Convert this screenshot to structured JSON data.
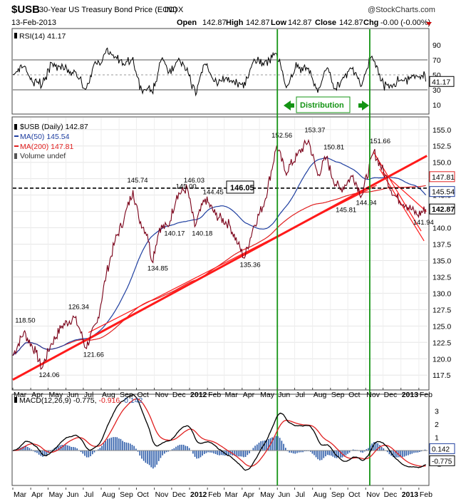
{
  "header": {
    "symbol": "$USB",
    "name": "30-Year US Treasury Bond Price (EOD)",
    "exchange": "INDX",
    "date": "13-Feb-2013",
    "watermark": "@StockCharts.com",
    "ohlc": [
      {
        "label": "Open",
        "value": "142.87"
      },
      {
        "label": "High",
        "value": "142.87"
      },
      {
        "label": "Low",
        "value": "142.87"
      },
      {
        "label": "Close",
        "value": "142.87"
      },
      {
        "label": "Chg",
        "value": "-0.00 (-0.00%)"
      }
    ]
  },
  "rsi_panel": {
    "legend": "RSI(14) 41.17",
    "value_tag": "41.17",
    "ticks": [
      "90",
      "70",
      "50",
      "30",
      "10"
    ],
    "annotation": "Distribution"
  },
  "price_panel": {
    "legend": [
      {
        "text": "$USB (Daily) 142.87",
        "color": "#000000"
      },
      {
        "text": "MA(50) 145.54",
        "color": "#1f3fa0"
      },
      {
        "text": "MA(200) 147.81",
        "color": "#e02020"
      },
      {
        "text": "Volume undef",
        "color": "#555555"
      }
    ],
    "resistance_label": "146.05",
    "tags": [
      {
        "text": "147.81",
        "y": 147.81,
        "color": "#e02020"
      },
      {
        "text": "145.54",
        "y": 145.54,
        "color": "#1f3fa0"
      },
      {
        "text": "142.87",
        "y": 142.87,
        "color": "#000000"
      }
    ],
    "ticks": [
      "155.0",
      "152.5",
      "150.0",
      "147.5",
      "145.0",
      "142.5",
      "140.0",
      "137.5",
      "135.0",
      "132.5",
      "130.0",
      "127.5",
      "125.0",
      "122.5",
      "120.0",
      "117.5"
    ]
  },
  "macd_panel": {
    "legend_prefix": "MACD(12,26,9) -0.775,",
    "legend_signal": "-0.916,",
    "legend_hist": "0.142",
    "tags": [
      {
        "text": "0.142",
        "y": 0.142,
        "color": "#1f3fa0"
      },
      {
        "text": "-0.775",
        "y": -0.775,
        "color": "#000000"
      }
    ],
    "ticks": [
      "3",
      "2",
      "1",
      "0",
      "-1"
    ]
  },
  "x_axis": {
    "labels": [
      "Mar",
      "Apr",
      "May",
      "Jun",
      "Jul",
      "Aug",
      "Sep",
      "Oct",
      "Nov",
      "Dec",
      "2012",
      "Feb",
      "Mar",
      "Apr",
      "May",
      "Jun",
      "Jul",
      "Aug",
      "Sep",
      "Oct",
      "Nov",
      "Dec",
      "2013",
      "Feb"
    ],
    "bold": [
      "2012",
      "2013"
    ]
  },
  "colors": {
    "price": "#7a0018",
    "ma50": "#1f3fa0",
    "ma200": "#e02020",
    "trendline": "#ff1a1a",
    "vline": "#149414",
    "macd": "#000000",
    "signal": "#e02020",
    "histogram": "#2a5aa8"
  },
  "chart_data": {
    "type": "line",
    "title": "$USB 30-Year US Treasury Bond Price (EOD)",
    "x_range": [
      "2011-03",
      "2013-02-13"
    ],
    "ylim": [
      116.0,
      156.5
    ],
    "price_keypoints": [
      {
        "x": "2011-03-01",
        "y": 120.5
      },
      {
        "x": "2011-03-20",
        "y": 124.06
      },
      {
        "x": "2011-04-10",
        "y": 121.0
      },
      {
        "x": "2011-04-20",
        "y": 118.5
      },
      {
        "x": "2011-05-05",
        "y": 122.0
      },
      {
        "x": "2011-05-25",
        "y": 125.0
      },
      {
        "x": "2011-06-15",
        "y": 126.34
      },
      {
        "x": "2011-06-25",
        "y": 124.5
      },
      {
        "x": "2011-07-05",
        "y": 121.66
      },
      {
        "x": "2011-07-25",
        "y": 125.5
      },
      {
        "x": "2011-08-10",
        "y": 133.0
      },
      {
        "x": "2011-08-25",
        "y": 138.0
      },
      {
        "x": "2011-09-10",
        "y": 141.5
      },
      {
        "x": "2011-09-25",
        "y": 145.74
      },
      {
        "x": "2011-10-05",
        "y": 141.5
      },
      {
        "x": "2011-10-20",
        "y": 139.0
      },
      {
        "x": "2011-10-28",
        "y": 134.85
      },
      {
        "x": "2011-11-10",
        "y": 140.0
      },
      {
        "x": "2011-11-25",
        "y": 140.17
      },
      {
        "x": "2011-12-10",
        "y": 145.0
      },
      {
        "x": "2011-12-28",
        "y": 146.03
      },
      {
        "x": "2012-01-10",
        "y": 140.18
      },
      {
        "x": "2012-01-28",
        "y": 144.45
      },
      {
        "x": "2012-02-15",
        "y": 142.0
      },
      {
        "x": "2012-03-10",
        "y": 140.5
      },
      {
        "x": "2012-03-25",
        "y": 137.5
      },
      {
        "x": "2012-04-05",
        "y": 135.36
      },
      {
        "x": "2012-04-20",
        "y": 140.0
      },
      {
        "x": "2012-05-10",
        "y": 144.0
      },
      {
        "x": "2012-05-31",
        "y": 152.56
      },
      {
        "x": "2012-06-15",
        "y": 148.5
      },
      {
        "x": "2012-07-05",
        "y": 151.0
      },
      {
        "x": "2012-07-25",
        "y": 153.37
      },
      {
        "x": "2012-08-10",
        "y": 148.0
      },
      {
        "x": "2012-08-25",
        "y": 150.81
      },
      {
        "x": "2012-09-05",
        "y": 147.5
      },
      {
        "x": "2012-09-18",
        "y": 145.81
      },
      {
        "x": "2012-10-10",
        "y": 148.0
      },
      {
        "x": "2012-10-25",
        "y": 144.94
      },
      {
        "x": "2012-11-15",
        "y": 151.66
      },
      {
        "x": "2012-12-05",
        "y": 148.0
      },
      {
        "x": "2012-12-20",
        "y": 145.0
      },
      {
        "x": "2013-01-10",
        "y": 143.5
      },
      {
        "x": "2013-01-30",
        "y": 141.94
      },
      {
        "x": "2013-02-13",
        "y": 142.87
      }
    ],
    "annotations": [
      "118.50",
      "124.06",
      "126.34",
      "121.66",
      "145.74",
      "134.85",
      "140.17",
      "145.00",
      "146.03",
      "140.18",
      "144.45",
      "135.36",
      "152.56",
      "153.37",
      "150.81",
      "145.81",
      "144.94",
      "151.66",
      "141.94"
    ]
  }
}
